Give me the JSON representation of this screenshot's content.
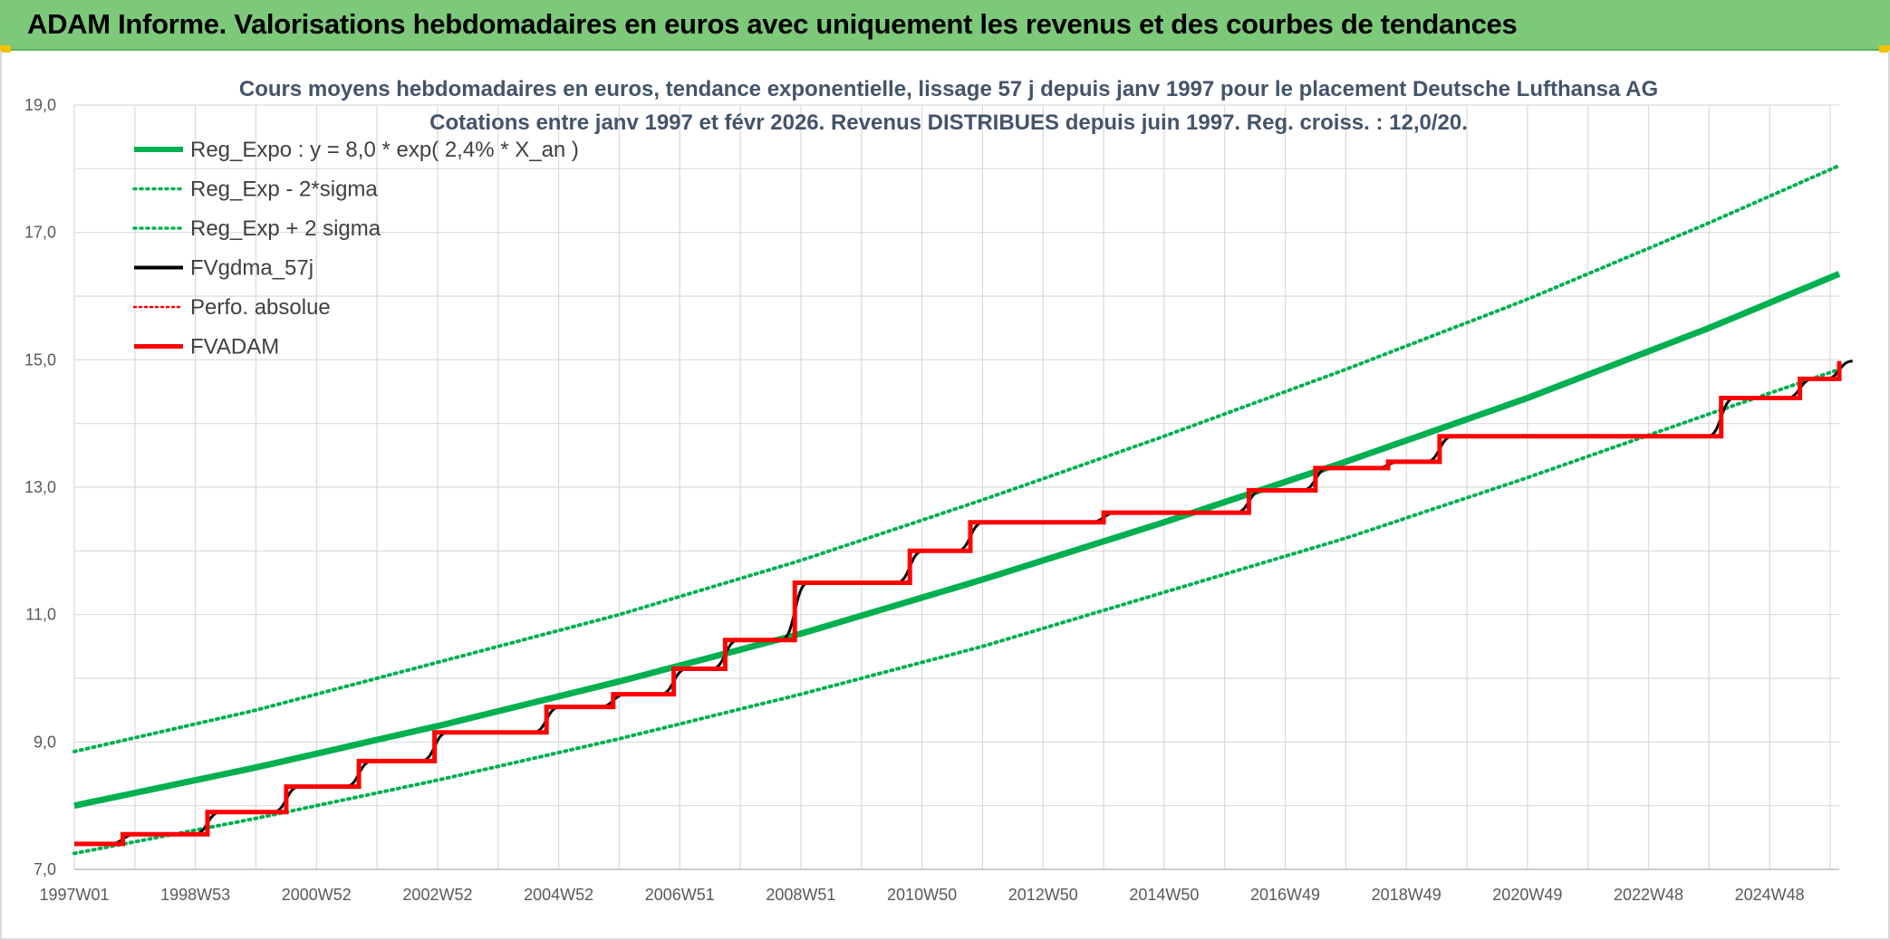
{
  "banner": {
    "title": "ADAM Informe. Valorisations hebdomadaires en euros avec uniquement les revenus et des courbes de tendances"
  },
  "colors": {
    "banner_bg": "#7dc97a",
    "trend_green": "#00b050",
    "fv_red": "#ff0000",
    "gdma_black": "#000000",
    "title_text": "#44546a",
    "gridline": "#d9d9d9"
  },
  "chart_data": {
    "type": "line",
    "title_lines": [
      "Cours moyens hebdomadaires en euros, tendance exponentielle, lissage 57 j depuis janv 1997 pour le placement Deutsche Lufthansa AG",
      "Cotations entre janv 1997 et févr 2026. Revenus DISTRIBUES depuis juin 1997. Reg. croiss. : 12,0/20."
    ],
    "x_tick_labels": [
      "1997W01",
      "1998W53",
      "2000W52",
      "2002W52",
      "2004W52",
      "2006W51",
      "2008W51",
      "2010W50",
      "2012W50",
      "2014W50",
      "2016W49",
      "2018W49",
      "2020W49",
      "2022W48",
      "2024W48"
    ],
    "x_range": [
      1997.0,
      2026.15
    ],
    "y_tick_labels": [
      "7,0",
      "9,0",
      "11,0",
      "13,0",
      "15,0",
      "17,0",
      "19,0"
    ],
    "y_ticks": [
      7,
      9,
      11,
      13,
      15,
      17,
      19
    ],
    "ylim": [
      7,
      19
    ],
    "grid": true,
    "legend_position": "top-left",
    "series": [
      {
        "name": "Reg_Expo : y = 8,0 * exp( 2,4% *  X_an )",
        "style": "solid-thick",
        "color": "#00b050",
        "x": [
          1997,
          2000,
          2003,
          2006,
          2009,
          2012,
          2015,
          2018,
          2021,
          2024,
          2026.15
        ],
        "y": [
          8.0,
          8.6,
          9.25,
          9.95,
          10.7,
          11.55,
          12.45,
          13.4,
          14.4,
          15.5,
          16.35
        ]
      },
      {
        "name": "Reg_Exp - 2*sigma",
        "style": "dotted",
        "color": "#00b050",
        "x": [
          1997,
          2000,
          2003,
          2006,
          2009,
          2012,
          2015,
          2018,
          2021,
          2024,
          2026.15
        ],
        "y": [
          7.25,
          7.8,
          8.4,
          9.05,
          9.75,
          10.5,
          11.35,
          12.2,
          13.15,
          14.15,
          14.85
        ]
      },
      {
        "name": "Reg_Exp + 2 sigma",
        "style": "dotted",
        "color": "#00b050",
        "x": [
          1997,
          2000,
          2003,
          2006,
          2009,
          2012,
          2015,
          2018,
          2021,
          2024,
          2026.15
        ],
        "y": [
          8.85,
          9.5,
          10.25,
          11.0,
          11.85,
          12.8,
          13.8,
          14.85,
          15.95,
          17.15,
          18.05
        ]
      },
      {
        "name": "FVgdma_57j",
        "style": "solid",
        "color": "#000000",
        "x": [],
        "y": []
      },
      {
        "name": "Perfo. absolue",
        "style": "dotted",
        "color": "#ff0000",
        "x": [],
        "y": []
      },
      {
        "name": "FVADAM",
        "style": "step",
        "color": "#ff0000",
        "x": [
          1997.0,
          1997.8,
          1999.2,
          2000.5,
          2001.7,
          2002.95,
          2004.8,
          2005.9,
          2006.9,
          2007.75,
          2008.9,
          2010.8,
          2011.8,
          2014.0,
          2016.4,
          2017.5,
          2018.7,
          2019.55,
          2024.2,
          2025.5,
          2026.15
        ],
        "y": [
          7.4,
          7.55,
          7.9,
          8.3,
          8.7,
          9.15,
          9.55,
          9.75,
          10.15,
          10.6,
          11.5,
          12.0,
          12.45,
          12.6,
          12.95,
          13.3,
          13.4,
          13.8,
          14.4,
          14.7,
          14.98
        ]
      }
    ]
  }
}
